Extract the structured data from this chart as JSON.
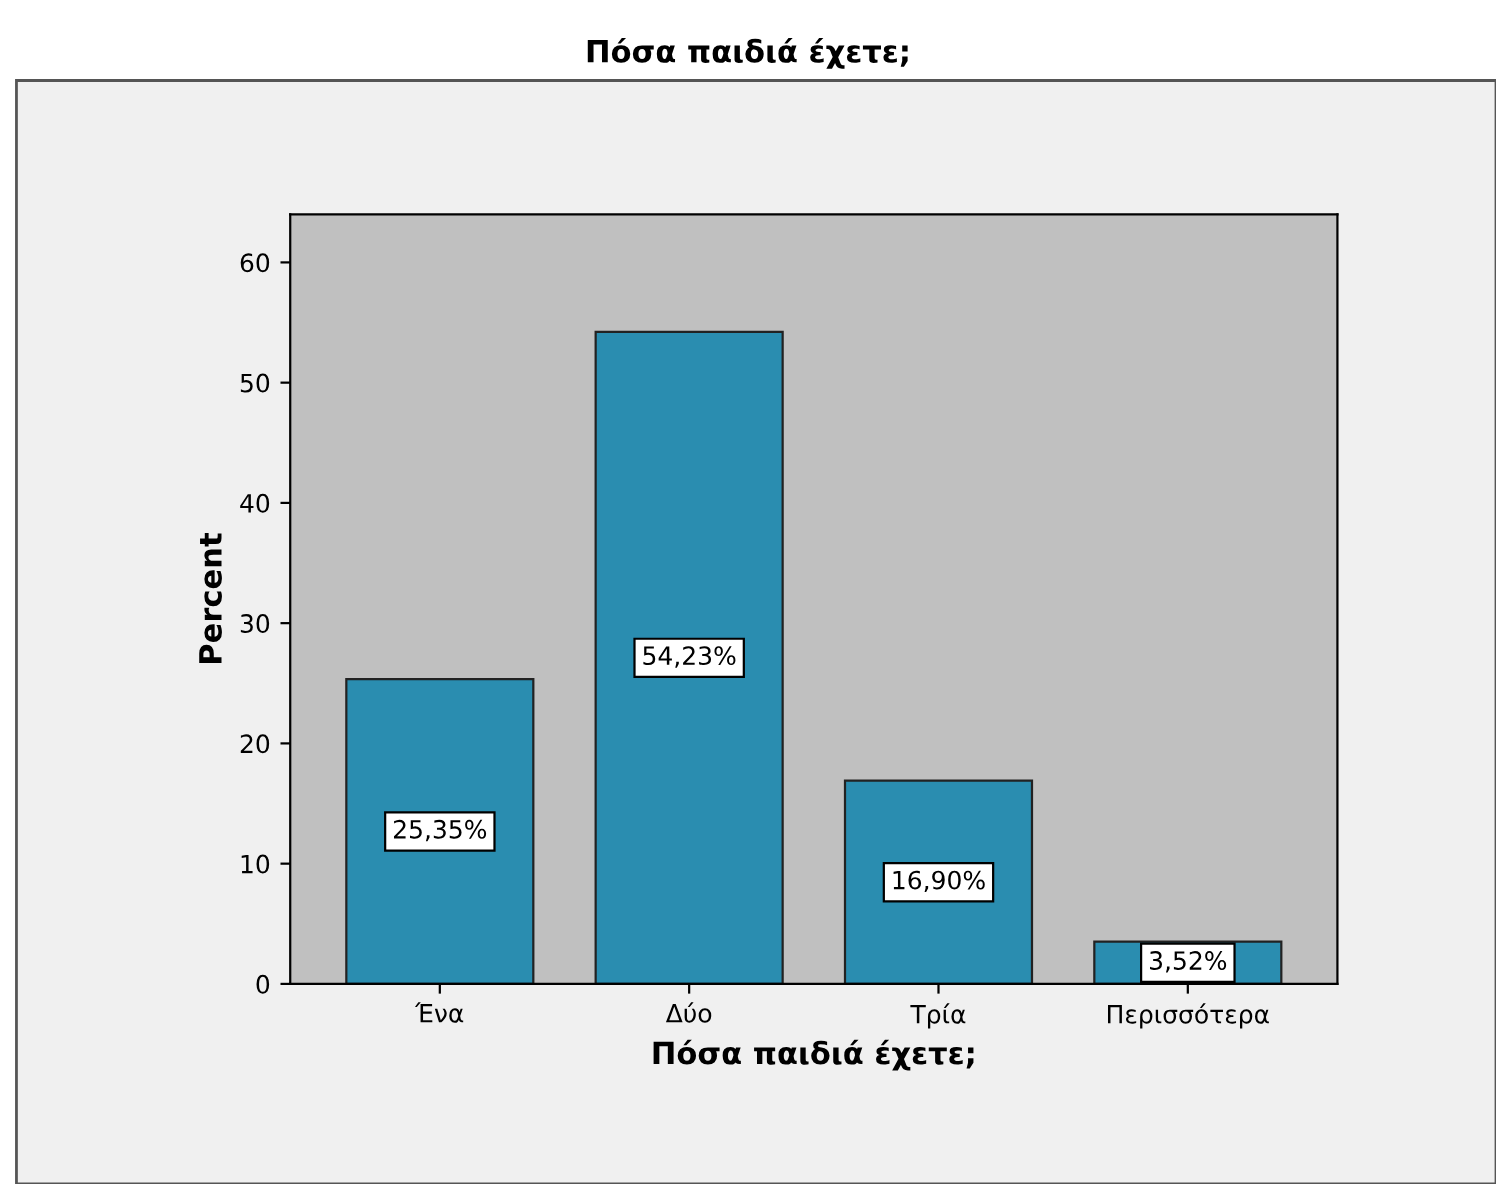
{
  "chart_data": {
    "type": "bar",
    "title": "Πόσα παιδιά έχετε;",
    "xlabel": "Πόσα παιδιά έχετε;",
    "ylabel": "Percent",
    "categories": [
      "Ένα",
      "Δύο",
      "Τρία",
      "Περισσότερα"
    ],
    "values": [
      25.35,
      54.23,
      16.9,
      3.52
    ],
    "value_labels": [
      "25,35%",
      "54,23%",
      "16,90%",
      "3,52%"
    ],
    "color": "#2a8db0",
    "ylim": [
      0,
      64
    ],
    "yticks": [
      0,
      10,
      20,
      30,
      40,
      50,
      60
    ],
    "grid": false,
    "legend": false
  }
}
